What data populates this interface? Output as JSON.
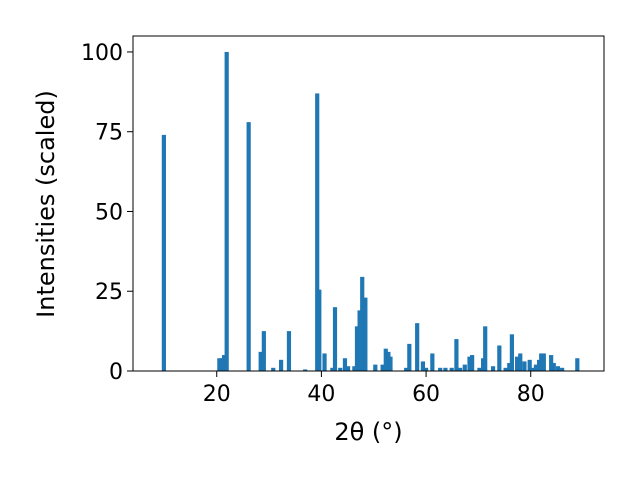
{
  "chart_data": {
    "type": "bar",
    "title": "",
    "xlabel": "2θ (°)",
    "ylabel": "Intensities (scaled)",
    "xlim": [
      4.0,
      94.0
    ],
    "ylim": [
      0,
      105
    ],
    "xticks": [
      20,
      40,
      60,
      80
    ],
    "yticks": [
      0,
      25,
      50,
      75,
      100
    ],
    "grid": false,
    "bar_width": 0.8,
    "color": "#1f77b4",
    "x": [
      9.9,
      20.5,
      21.0,
      21.4,
      21.9,
      26.1,
      28.4,
      29.0,
      30.8,
      32.3,
      33.8,
      36.9,
      39.2,
      39.6,
      40.6,
      42.1,
      42.6,
      43.6,
      44.5,
      45.1,
      46.3,
      46.8,
      47.3,
      47.8,
      48.4,
      50.3,
      51.7,
      52.3,
      52.8,
      53.2,
      56.2,
      56.8,
      58.3,
      59.4,
      60.0,
      61.2,
      62.7,
      63.7,
      64.9,
      65.8,
      66.5,
      67.4,
      68.3,
      68.8,
      70.2,
      70.9,
      71.3,
      72.8,
      74.0,
      75.2,
      75.9,
      76.4,
      77.4,
      78.0,
      78.8,
      79.8,
      80.4,
      81.0,
      81.6,
      82.0,
      82.5,
      83.9,
      84.4,
      85.2,
      86.0,
      88.9
    ],
    "values": [
      74,
      4,
      4,
      5,
      100,
      78,
      6,
      12.5,
      1,
      3.5,
      12.5,
      0.5,
      87,
      25.5,
      5.5,
      1,
      20,
      1,
      4,
      1.5,
      1.5,
      14,
      19,
      29.5,
      23,
      2,
      2,
      7,
      6,
      4.5,
      1,
      8.5,
      15,
      3,
      1,
      5.5,
      1,
      1,
      1,
      10,
      1,
      2,
      4.5,
      5,
      1,
      4,
      14,
      1.5,
      8,
      1,
      2.5,
      11.5,
      4.5,
      5.5,
      3,
      3.5,
      1,
      2,
      3.5,
      5.5,
      5.5,
      5,
      2.5,
      1.5,
      1,
      4
    ]
  }
}
